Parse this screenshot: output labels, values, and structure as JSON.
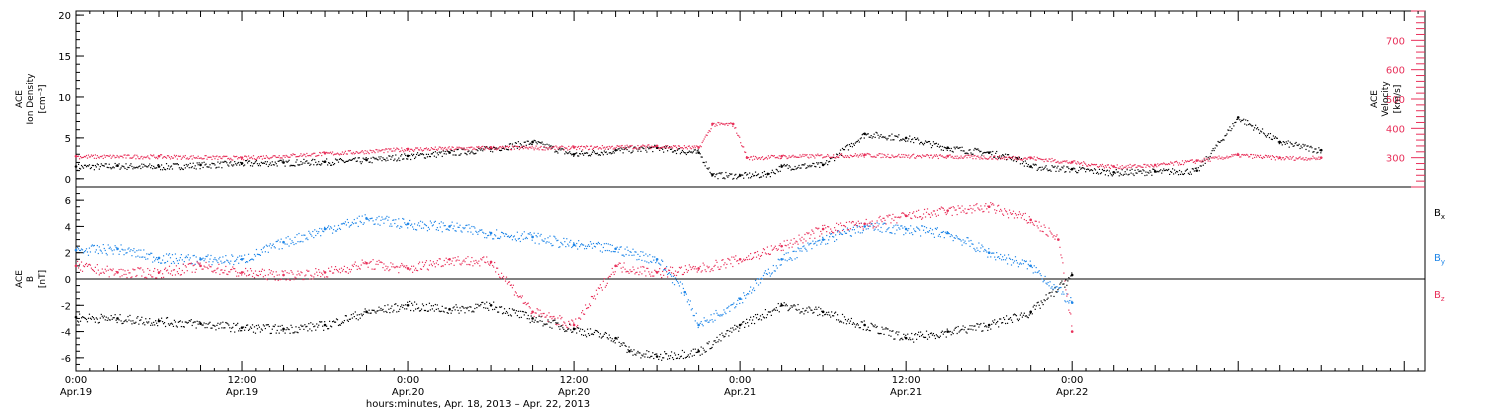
{
  "chart_data": [
    {
      "type": "scatter",
      "panel": "top",
      "ylabel": [
        "ACE",
        "Ion Density",
        "[cm⁻³]"
      ],
      "y2label": [
        "ACE",
        "Velocity",
        "[km/s]"
      ],
      "ylim": [
        -1,
        20.5
      ],
      "y2lim": [
        200,
        800
      ],
      "yticks": [
        0,
        5,
        10,
        15,
        20
      ],
      "y2ticks": [
        300,
        400,
        500,
        600,
        700
      ],
      "grid": false,
      "series": [
        {
          "color": "#000000",
          "axis": "left",
          "x": [
            0,
            3,
            6,
            9,
            12,
            15,
            18,
            21,
            24,
            27,
            30,
            33,
            36,
            39,
            42,
            45,
            46,
            48,
            50,
            51,
            54,
            57,
            60,
            63,
            66,
            68,
            69,
            72,
            75,
            78,
            81,
            84,
            87,
            90
          ],
          "y": [
            1.5,
            1.6,
            1.5,
            1.7,
            1.9,
            2.0,
            2.1,
            2.3,
            2.8,
            3.2,
            3.7,
            4.5,
            3.0,
            3.5,
            3.8,
            3.2,
            0.5,
            0.4,
            0.6,
            1.5,
            1.7,
            5.5,
            5.0,
            3.8,
            3.2,
            2.5,
            1.5,
            1.2,
            0.8,
            0.9,
            1.0,
            7.5,
            4.5,
            3.5
          ]
        },
        {
          "color": "#e8305a",
          "axis": "right",
          "x": [
            0,
            6,
            12,
            18,
            24,
            30,
            36,
            42,
            45,
            46,
            47.5,
            48.5,
            51,
            57,
            63,
            69,
            72,
            75,
            78,
            81,
            84,
            87,
            90
          ],
          "y": [
            305,
            305,
            300,
            315,
            330,
            335,
            335,
            340,
            335,
            415,
            415,
            300,
            305,
            310,
            305,
            300,
            285,
            270,
            275,
            290,
            310,
            300,
            300
          ]
        }
      ]
    },
    {
      "type": "scatter",
      "panel": "bottom",
      "ylabel": [
        "ACE",
        "B",
        "[nT]"
      ],
      "ylim": [
        -7,
        7
      ],
      "yticks": [
        -6,
        -4,
        -2,
        0,
        2,
        4,
        6
      ],
      "xlabel": "hours:minutes, Apr. 18, 2013 – Apr. 22, 2013",
      "xlim": [
        0,
        97.5
      ],
      "xticks": [
        0,
        24,
        48,
        72,
        96
      ],
      "xtick_labels": [
        [
          "0:00",
          "Apr.19"
        ],
        [
          "12:00",
          "Apr.19"
        ],
        [
          "0:00",
          "Apr.20"
        ],
        [
          "12:00",
          "Apr.20"
        ],
        [
          "0:00",
          "Apr.21"
        ],
        [
          "12:00",
          "Apr.21"
        ],
        [
          "0:00",
          "Apr.22"
        ]
      ],
      "xtick_positions": [
        0,
        12,
        24,
        36,
        48,
        60,
        72
      ],
      "grid": false,
      "series": [
        {
          "name": "Bx",
          "color": "#000000",
          "x": [
            0,
            3,
            6,
            9,
            12,
            15,
            18,
            21,
            24,
            27,
            30,
            33,
            36,
            39,
            40,
            42,
            45,
            48,
            51,
            54,
            57,
            60,
            63,
            66,
            69,
            72
          ],
          "y": [
            -2.9,
            -3.0,
            -3.2,
            -3.4,
            -3.7,
            -3.8,
            -3.5,
            -2.5,
            -2.0,
            -2.3,
            -2.0,
            -3.0,
            -3.8,
            -4.5,
            -5.5,
            -5.9,
            -5.5,
            -3.5,
            -2.0,
            -2.5,
            -3.5,
            -4.5,
            -4.0,
            -3.5,
            -2.5,
            0.3
          ]
        },
        {
          "name": "By",
          "color": "#1f86e8",
          "x": [
            0,
            3,
            6,
            9,
            12,
            15,
            18,
            21,
            24,
            27,
            30,
            33,
            36,
            39,
            42,
            44,
            45,
            48,
            51,
            54,
            57,
            60,
            63,
            66,
            69,
            72
          ],
          "y": [
            2.2,
            2.3,
            1.6,
            1.5,
            1.5,
            2.8,
            3.8,
            4.6,
            4.2,
            4.0,
            3.5,
            3.2,
            2.6,
            2.3,
            1.5,
            -1.0,
            -3.5,
            -1.5,
            1.5,
            3.0,
            4.0,
            3.8,
            3.5,
            2.0,
            1.0,
            -1.8
          ]
        },
        {
          "name": "Bz",
          "color": "#e8305a",
          "x": [
            0,
            3,
            6,
            9,
            12,
            15,
            18,
            21,
            24,
            27,
            30,
            33,
            36,
            39,
            42,
            45,
            48,
            51,
            54,
            57,
            60,
            63,
            66,
            69,
            71,
            72
          ],
          "y": [
            1.0,
            0.5,
            0.5,
            1.0,
            0.5,
            0.3,
            0.5,
            1.2,
            0.8,
            1.5,
            1.3,
            -2.5,
            -3.5,
            1.0,
            0.5,
            0.8,
            1.5,
            2.5,
            3.8,
            4.2,
            4.8,
            5.2,
            5.5,
            4.5,
            3.0,
            -4.0
          ]
        }
      ],
      "legend": [
        "B",
        "B",
        "B"
      ],
      "legend_sub": [
        "x",
        "y",
        "z"
      ],
      "legend_position": "right"
    }
  ]
}
